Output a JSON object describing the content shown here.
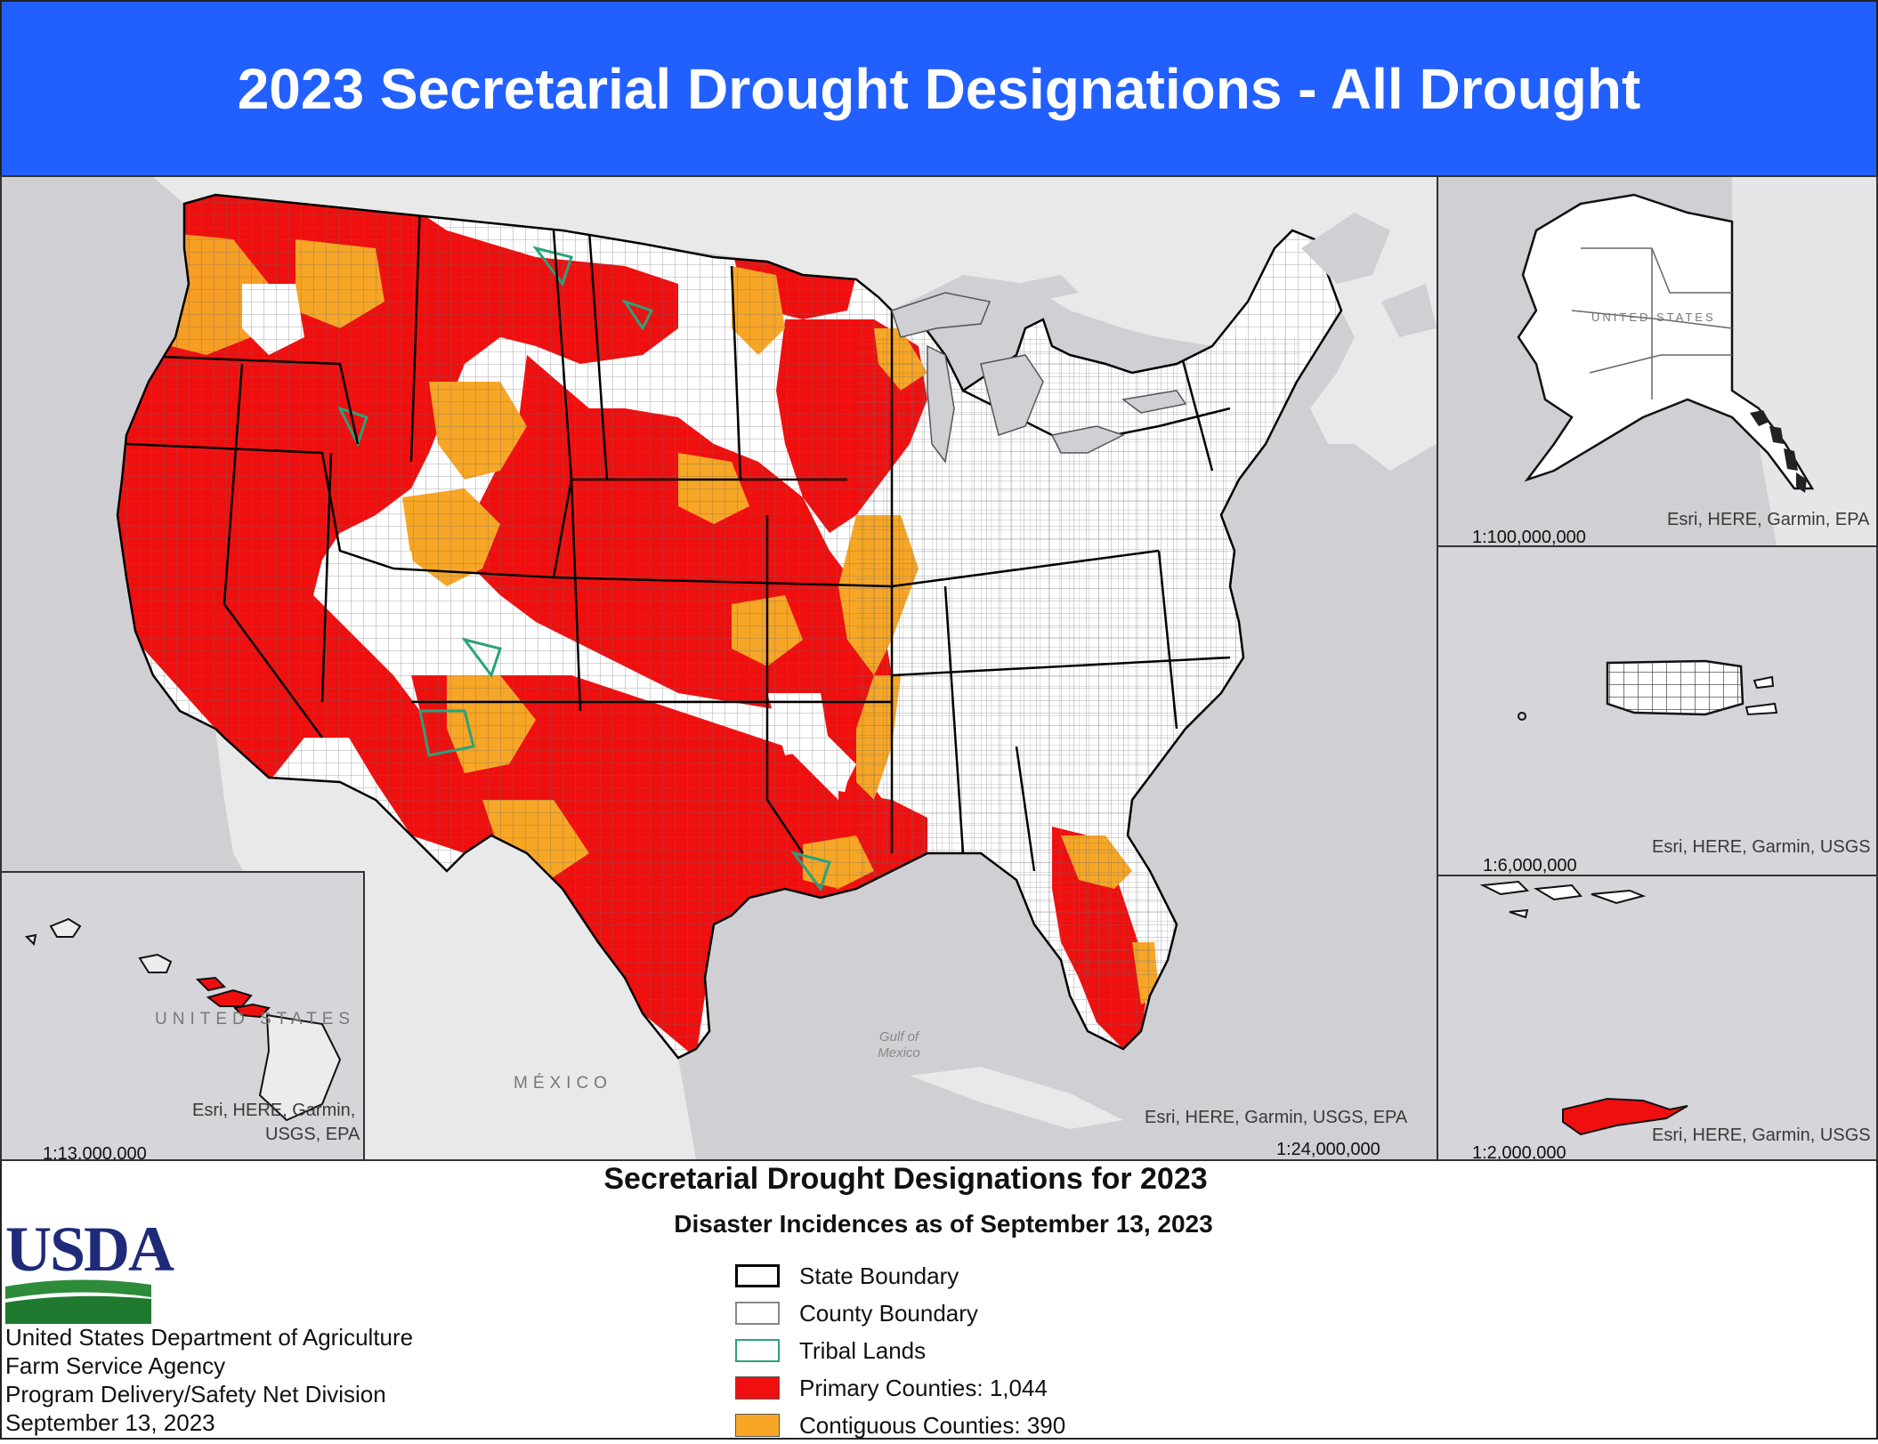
{
  "header": {
    "title": "2023 Secretarial Drought Designations - All Drought"
  },
  "colors": {
    "header_bg": "#2160ff",
    "primary": "#f00f0f",
    "contiguous": "#f7a626",
    "none": "#ffffff",
    "water": "#cfcfd4",
    "land": "#ececec",
    "tribal": "#2aa27a",
    "state_boundary": "#000000",
    "county_boundary": "#555555"
  },
  "main_map": {
    "scale": "1:24,000,000",
    "credit": "Esri, HERE, Garmin, USGS, EPA",
    "labels": {
      "mexico": "MÉXICO",
      "gulf": "Gulf of Mexico"
    }
  },
  "alaska_inset": {
    "scale": "1:100,000,000",
    "credit": "Esri, HERE, Garmin, EPA",
    "label": "UNITED STATES"
  },
  "hawaii_inset": {
    "scale": "1:13,000,000",
    "credit_line1": "Esri, HERE, Garmin,",
    "credit_line2": "USGS, EPA",
    "label": "UNITED STATES"
  },
  "puerto_rico_inset": {
    "scale": "1:6,000,000",
    "credit": "Esri, HERE, Garmin, USGS"
  },
  "virgin_islands_inset": {
    "scale": "1:2,000,000",
    "credit": "Esri, HERE, Garmin, USGS"
  },
  "legend": {
    "title": "Secretarial Drought Designations for 2023",
    "subtitle": "Disaster Incidences as of September 13, 2023",
    "items": [
      {
        "label": "State Boundary",
        "fill": "#ffffff",
        "stroke": "#000000"
      },
      {
        "label": "County Boundary",
        "fill": "#ffffff",
        "stroke": "#888888"
      },
      {
        "label": "Tribal Lands",
        "fill": "#ffffff",
        "stroke": "#2aa27a"
      },
      {
        "label": "Primary Counties: 1,044",
        "fill": "#f00f0f",
        "stroke": "#555555"
      },
      {
        "label": "Contiguous Counties: 390",
        "fill": "#f7a626",
        "stroke": "#555555"
      }
    ]
  },
  "agency": {
    "logo_text": "USDA",
    "lines": [
      "United States Department of Agriculture",
      "Farm Service Agency",
      "Program Delivery/Safety Net Division",
      "September 13, 2023"
    ]
  }
}
